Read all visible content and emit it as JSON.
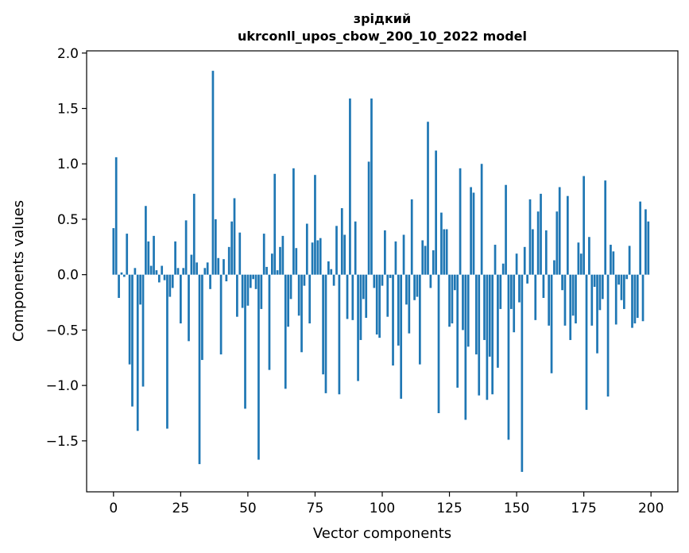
{
  "chart_data": {
    "type": "bar",
    "title": "зрідкий",
    "subtitle": "ukrconll_upos_cbow_200_10_2022 model",
    "xlabel": "Vector components",
    "ylabel": "Components values",
    "xlim": [
      -10,
      210
    ],
    "ylim": [
      -1.96,
      2.02
    ],
    "xticks": [
      0,
      25,
      50,
      75,
      100,
      125,
      150,
      175,
      200
    ],
    "yticks": [
      -1.5,
      -1.0,
      -0.5,
      0.0,
      0.5,
      1.0,
      1.5,
      2.0
    ],
    "ytick_labels": [
      "−1.5",
      "−1.0",
      "−0.5",
      "0.0",
      "0.5",
      "1.0",
      "1.5",
      "2.0"
    ],
    "grid": false,
    "bar_color": "#1f77b4",
    "values": [
      0.42,
      1.06,
      -0.21,
      0.02,
      -0.02,
      0.37,
      -0.81,
      -1.19,
      0.06,
      -1.41,
      -0.27,
      -1.01,
      0.62,
      0.3,
      0.08,
      0.35,
      0.04,
      -0.07,
      0.08,
      -0.05,
      -1.39,
      -0.2,
      -0.12,
      0.3,
      0.06,
      -0.44,
      0.06,
      0.49,
      -0.6,
      0.18,
      0.73,
      0.11,
      -1.71,
      -0.77,
      0.06,
      0.11,
      -0.13,
      1.84,
      0.5,
      0.15,
      -0.72,
      0.14,
      -0.06,
      0.25,
      0.48,
      0.69,
      -0.38,
      0.38,
      -0.3,
      -1.21,
      -0.28,
      -0.12,
      -0.04,
      -0.13,
      -1.67,
      -0.31,
      0.37,
      0.07,
      -0.86,
      0.19,
      0.91,
      0.04,
      0.25,
      0.35,
      -1.03,
      -0.47,
      -0.22,
      0.96,
      0.24,
      -0.37,
      -0.7,
      -0.1,
      0.46,
      -0.44,
      0.29,
      0.9,
      0.31,
      0.33,
      -0.9,
      -1.07,
      0.12,
      0.05,
      -0.1,
      0.44,
      -1.08,
      0.6,
      0.36,
      -0.4,
      1.59,
      -0.41,
      0.48,
      -0.96,
      -0.59,
      -0.22,
      -0.39,
      1.02,
      1.59,
      -0.12,
      -0.54,
      -0.57,
      -0.1,
      0.4,
      -0.38,
      -0.03,
      -0.82,
      0.3,
      -0.64,
      -1.12,
      0.36,
      -0.27,
      -0.53,
      0.68,
      -0.23,
      -0.2,
      -0.81,
      0.31,
      0.26,
      1.38,
      -0.12,
      0.22,
      1.12,
      -1.25,
      0.56,
      0.41,
      0.41,
      -0.47,
      -0.44,
      -0.14,
      -1.02,
      0.96,
      -0.5,
      -1.31,
      -0.65,
      0.79,
      0.74,
      -0.72,
      -1.09,
      1.0,
      -0.59,
      -1.13,
      -0.74,
      -1.08,
      0.27,
      -0.84,
      -0.31,
      0.1,
      0.81,
      -1.49,
      -0.31,
      -0.52,
      0.19,
      -0.25,
      -1.78,
      0.25,
      -0.08,
      0.68,
      0.41,
      -0.41,
      0.57,
      0.73,
      -0.21,
      0.4,
      -0.46,
      -0.89,
      0.13,
      0.57,
      0.79,
      -0.14,
      -0.46,
      0.71,
      -0.59,
      -0.37,
      -0.44,
      0.29,
      0.19,
      0.89,
      -1.22,
      0.34,
      -0.46,
      -0.11,
      -0.71,
      -0.32,
      -0.22,
      0.85,
      -1.1,
      0.27,
      0.21,
      -0.45,
      -0.09,
      -0.23,
      -0.31,
      -0.04,
      0.26,
      -0.48,
      -0.44,
      -0.39,
      0.66,
      -0.42,
      0.59,
      0.48
    ]
  }
}
